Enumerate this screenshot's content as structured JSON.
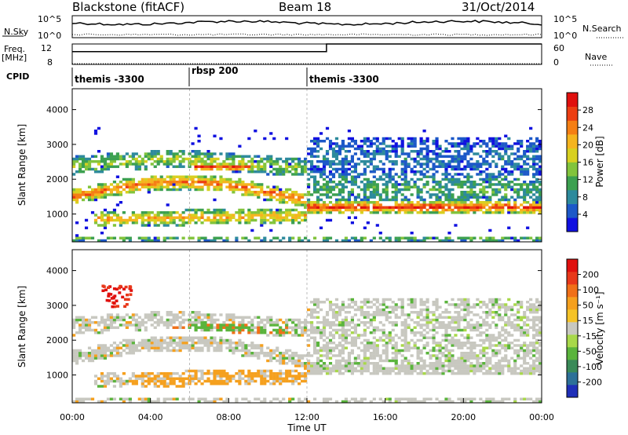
{
  "header": {
    "station": "Blackstone (fitACF)",
    "beam": "Beam 18",
    "date": "31/Oct/2014"
  },
  "noise_panel": {
    "left_label": "N.Sky",
    "right_label": "N.Search",
    "ticks_left": [
      "10^5",
      "10^0"
    ],
    "ticks_right": [
      "10^5",
      "10^0"
    ]
  },
  "freq_panel": {
    "left_label": "Freq.",
    "left_unit": "[MHz]",
    "right_label": "Nave",
    "ticks_left": [
      "12",
      "8"
    ],
    "ticks_right": [
      "60",
      "0"
    ],
    "freq_values": [
      {
        "from": 0,
        "to": 13,
        "value": 10.5
      },
      {
        "from": 13,
        "to": 24,
        "value": 12.0
      }
    ],
    "nave_dotted_value": 2
  },
  "cpid": {
    "label": "CPID",
    "segments": [
      {
        "start_hour": 0,
        "name": "themis -3300"
      },
      {
        "start_hour": 6,
        "name": "rbsp 200"
      },
      {
        "start_hour": 12,
        "name": "themis -3300"
      }
    ]
  },
  "chart_data": [
    {
      "type": "heatmap",
      "title": "",
      "ylabel": "Slant Range [km]",
      "xlabel": "",
      "xlim": [
        0,
        24
      ],
      "ylim": [
        200,
        4600
      ],
      "yticks": [
        1000,
        2000,
        3000,
        4000
      ],
      "colorbar": {
        "label": "Power [dB]",
        "ticks": [
          4,
          8,
          12,
          16,
          20,
          24,
          28
        ],
        "colors": [
          "#1010e0",
          "#1c58c8",
          "#2d8a9c",
          "#3ca050",
          "#82c43c",
          "#d8d020",
          "#f5b41e",
          "#f57f14",
          "#ec3e12",
          "#e0100e"
        ]
      }
    },
    {
      "type": "heatmap",
      "title": "",
      "ylabel": "Slant Range [km]",
      "xlabel": "Time UT",
      "xlim": [
        0,
        24
      ],
      "ylim": [
        200,
        4600
      ],
      "yticks": [
        1000,
        2000,
        3000,
        4000
      ],
      "xticks": [
        "00:00",
        "04:00",
        "08:00",
        "12:00",
        "16:00",
        "20:00",
        "00:00"
      ],
      "colorbar": {
        "label": "Velocity [m s⁻¹]",
        "ticks": [
          "200",
          "100",
          "50",
          "15",
          "-15",
          "-50",
          "-100",
          "-200"
        ],
        "colors": [
          "#1f2fb8",
          "#2d7098",
          "#3a8a58",
          "#5ab43c",
          "#a8d84a",
          "#c8c8c0",
          "#f5c328",
          "#f5a01e",
          "#f07018",
          "#e8381a",
          "#e0100e"
        ]
      }
    }
  ]
}
